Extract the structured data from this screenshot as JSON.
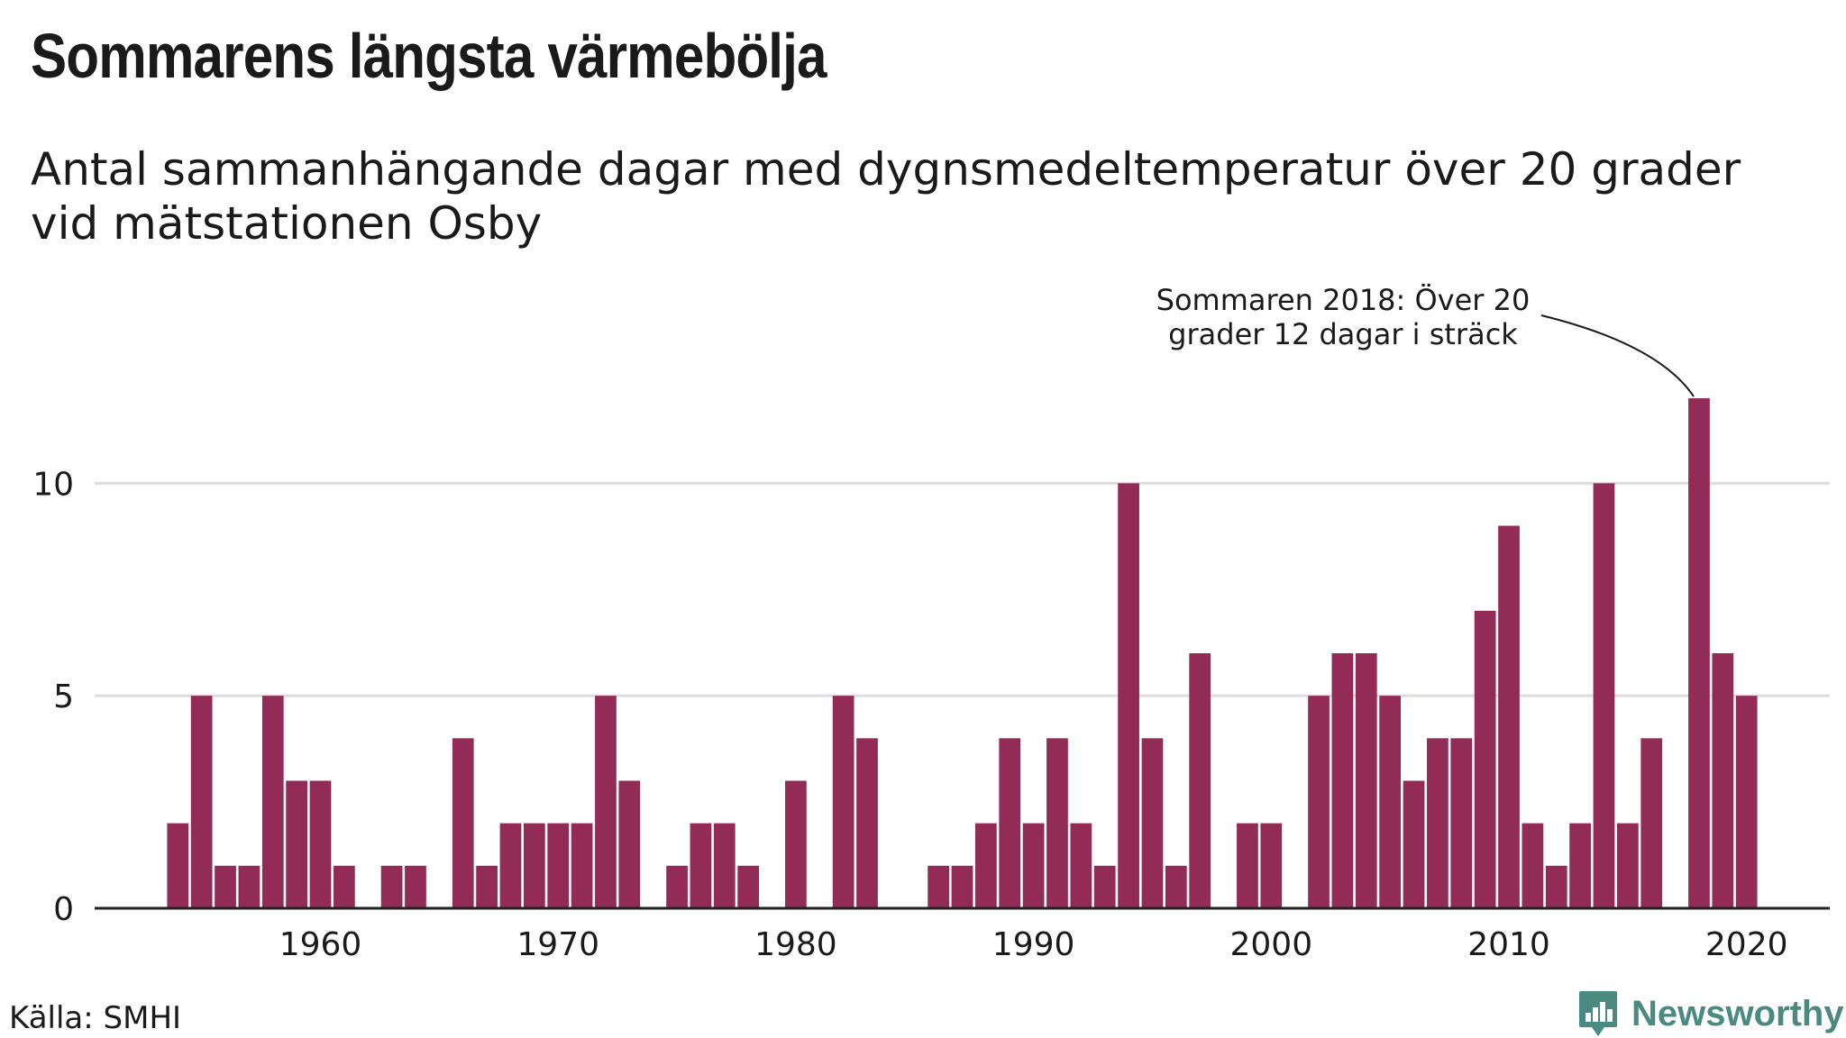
{
  "header": {
    "title": "Sommarens längsta värmebölja",
    "subtitle": "Antal sammanhängande dagar med dygnsmedeltemperatur över 20 grader vid mätstationen Osby"
  },
  "footer": {
    "source": "Källa: SMHI",
    "brand": "Newsworthy"
  },
  "colors": {
    "bar": "#922c57",
    "grid": "#dcdcdc",
    "axis": "#222222",
    "brand": "#4b8a80"
  },
  "chart_data": {
    "type": "bar",
    "title": "Sommarens längsta värmebölja",
    "subtitle": "Antal sammanhängande dagar med dygnsmedeltemperatur över 20 grader vid mätstationen Osby",
    "xlabel": "",
    "ylabel": "",
    "xlim": [
      1950.5,
      2023.5
    ],
    "ylim": [
      0,
      12
    ],
    "yticks": [
      0,
      5,
      10
    ],
    "xticks": [
      1960,
      1970,
      1980,
      1990,
      2000,
      2010,
      2020
    ],
    "grid": true,
    "x": [
      1954,
      1955,
      1956,
      1957,
      1958,
      1959,
      1960,
      1961,
      1962,
      1963,
      1964,
      1965,
      1966,
      1967,
      1968,
      1969,
      1970,
      1971,
      1972,
      1973,
      1974,
      1975,
      1976,
      1977,
      1978,
      1979,
      1980,
      1981,
      1982,
      1983,
      1984,
      1985,
      1986,
      1987,
      1988,
      1989,
      1990,
      1991,
      1992,
      1993,
      1994,
      1995,
      1996,
      1997,
      1998,
      1999,
      2000,
      2001,
      2002,
      2003,
      2004,
      2005,
      2006,
      2007,
      2008,
      2009,
      2010,
      2011,
      2012,
      2013,
      2014,
      2015,
      2016,
      2017,
      2018,
      2019,
      2020
    ],
    "values": [
      2,
      5,
      1,
      1,
      5,
      3,
      3,
      1,
      0,
      1,
      1,
      0,
      4,
      1,
      2,
      2,
      2,
      2,
      5,
      3,
      0,
      1,
      2,
      2,
      1,
      0,
      3,
      0,
      5,
      4,
      0,
      0,
      1,
      1,
      2,
      4,
      2,
      4,
      2,
      1,
      10,
      4,
      1,
      6,
      0,
      2,
      2,
      0,
      5,
      6,
      6,
      5,
      3,
      4,
      4,
      7,
      9,
      2,
      1,
      2,
      10,
      2,
      4,
      0,
      12,
      6,
      5
    ],
    "annotation": {
      "x": 2018,
      "y": 12,
      "lines": [
        "Sommaren 2018: Över 20",
        "grader 12 dagar i sträck"
      ]
    }
  }
}
